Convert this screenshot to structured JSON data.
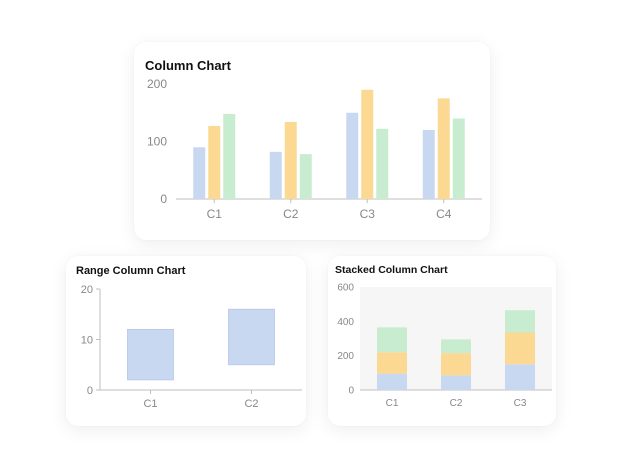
{
  "colors": {
    "blue": "#c9d8f1",
    "orange": "#fbd993",
    "green": "#c8eccf",
    "axis": "#bfbfbf",
    "tick_text": "#888888"
  },
  "chart_data": [
    {
      "type": "bar",
      "title": "Column Chart",
      "categories": [
        "C1",
        "C2",
        "C3",
        "C4"
      ],
      "series": [
        {
          "values": [
            90,
            82,
            150,
            120
          ],
          "color": "#c9d8f1"
        },
        {
          "values": [
            127,
            134,
            190,
            175
          ],
          "color": "#fbd993"
        },
        {
          "values": [
            148,
            78,
            122,
            140
          ],
          "color": "#c8eccf"
        }
      ],
      "yticks": [
        "0",
        "100",
        "200"
      ],
      "ylim": [
        0,
        200
      ],
      "grid": false
    },
    {
      "type": "bar",
      "subtype": "range",
      "title": "Range Column Chart",
      "categories": [
        "C1",
        "C2"
      ],
      "ranges": [
        [
          2,
          12
        ],
        [
          5,
          16
        ]
      ],
      "color": "#c9d8f1",
      "yticks": [
        "0",
        "10",
        "20"
      ],
      "ylim": [
        0,
        20
      ],
      "grid": false
    },
    {
      "type": "bar",
      "subtype": "stacked",
      "title": "Stacked Column Chart",
      "categories": [
        "C1",
        "C2",
        "C3"
      ],
      "series": [
        {
          "values": [
            95,
            85,
            150
          ],
          "color": "#c9d8f1"
        },
        {
          "values": [
            125,
            130,
            185
          ],
          "color": "#fbd993"
        },
        {
          "values": [
            145,
            80,
            130
          ],
          "color": "#c8eccf"
        }
      ],
      "yticks": [
        "0",
        "200",
        "400",
        "600"
      ],
      "ylim": [
        0,
        600
      ],
      "grid": false
    }
  ]
}
